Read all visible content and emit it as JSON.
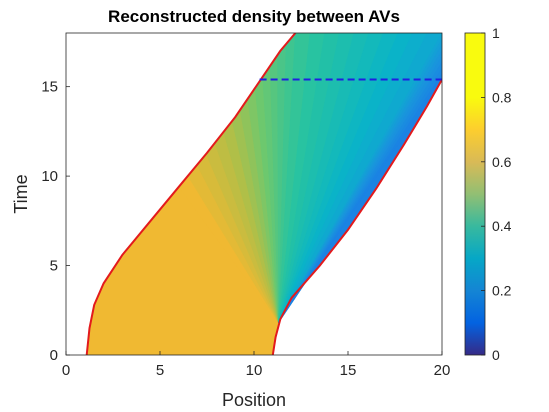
{
  "chart_data": {
    "type": "area",
    "title": "Reconstructed density between AVs",
    "xlabel": "Position",
    "ylabel": "Time",
    "xlim": [
      0,
      20
    ],
    "ylim": [
      0,
      18
    ],
    "xticks": [
      0,
      5,
      10,
      15,
      20
    ],
    "yticks": [
      0,
      5,
      10,
      15
    ],
    "grid": false,
    "colorbar": {
      "position": "right",
      "range": [
        0,
        1
      ],
      "ticks": [
        0,
        0.2,
        0.4,
        0.6,
        0.8,
        1
      ]
    },
    "series": [
      {
        "role": "left-boundary-trajectory",
        "color": "#e31a1c",
        "x": [
          1.1,
          1.25,
          1.5,
          2.0,
          3.0,
          4.5,
          6.0,
          7.5,
          9.0,
          10.3,
          11.4,
          12.2
        ],
        "y": [
          0,
          1.5,
          2.8,
          4.0,
          5.6,
          7.5,
          9.4,
          11.3,
          13.3,
          15.3,
          17.0,
          18.0
        ]
      },
      {
        "role": "right-boundary-trajectory",
        "color": "#e31a1c",
        "x": [
          11.0,
          11.15,
          11.4,
          12.0,
          13.5,
          15.0,
          16.5,
          18.0,
          19.2,
          20.0
        ],
        "y": [
          0,
          1.0,
          2.0,
          3.2,
          5.0,
          7.0,
          9.3,
          11.8,
          13.9,
          15.4
        ]
      },
      {
        "role": "dashed-level",
        "color": "#1f1fe0",
        "style": "dashed",
        "x": [
          10.3,
          20.0
        ],
        "y": [
          15.4,
          15.4
        ]
      }
    ],
    "density_regions": [
      {
        "region": "uniform",
        "value": 0.8
      },
      {
        "region": "fan",
        "origin": [
          11.3,
          1.8
        ],
        "value_range": [
          0.8,
          0.28
        ]
      }
    ]
  }
}
